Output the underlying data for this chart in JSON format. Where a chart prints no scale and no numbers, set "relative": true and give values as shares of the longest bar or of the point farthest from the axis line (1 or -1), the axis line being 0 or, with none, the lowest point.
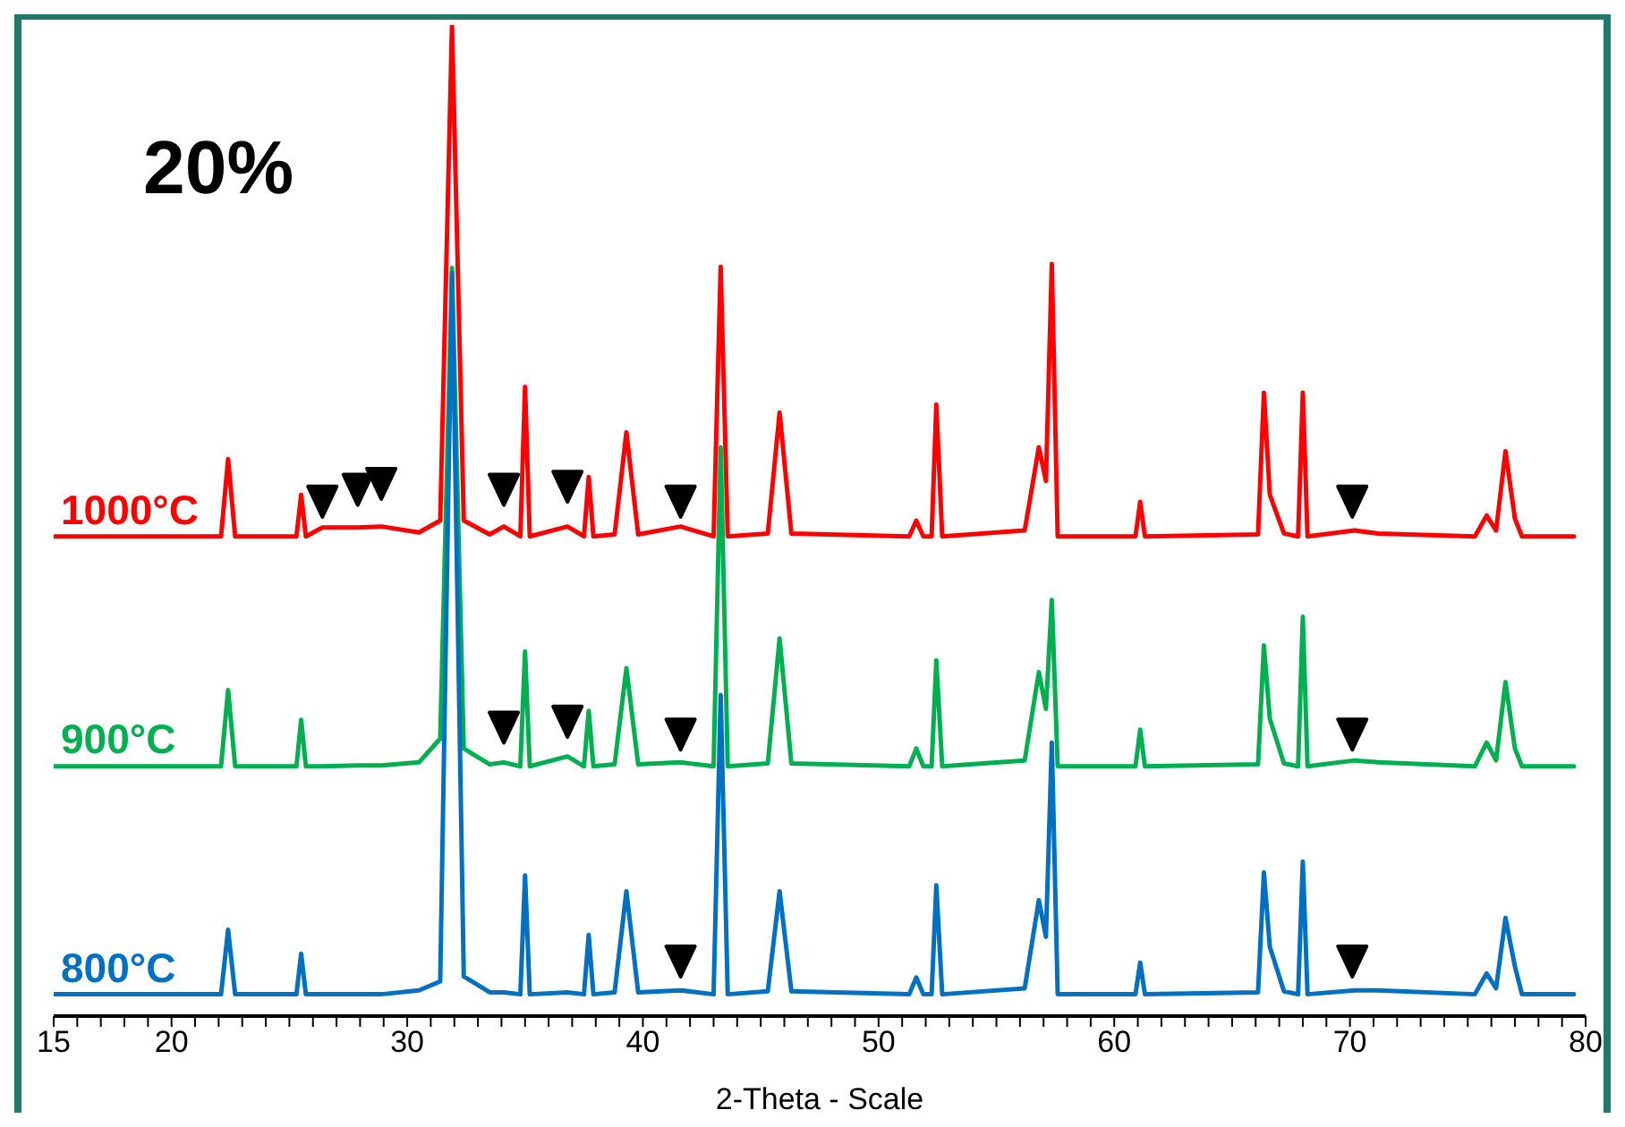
{
  "chart_data": {
    "type": "line",
    "title": "20%",
    "xlabel": "2-Theta - Scale",
    "relative": true,
    "marker": "none",
    "legend": false,
    "xlim": [
      15,
      80
    ],
    "xticks": [
      15,
      {
        "value": 16,
        "label": null
      },
      {
        "value": 17,
        "label": null
      },
      {
        "value": 18,
        "label": null
      },
      {
        "value": 19,
        "label": null
      },
      20,
      {
        "value": 21,
        "label": null
      },
      {
        "value": 22,
        "label": null
      },
      {
        "value": 23,
        "label": null
      },
      {
        "value": 24,
        "label": null
      },
      {
        "value": 25,
        "label": null
      },
      {
        "value": 26,
        "label": null
      },
      {
        "value": 27,
        "label": null
      },
      {
        "value": 28,
        "label": null
      },
      {
        "value": 29,
        "label": null
      },
      30,
      {
        "value": 31,
        "label": null
      },
      {
        "value": 32,
        "label": null
      },
      {
        "value": 33,
        "label": null
      },
      {
        "value": 34,
        "label": null
      },
      {
        "value": 35,
        "label": null
      },
      {
        "value": 36,
        "label": null
      },
      {
        "value": 37,
        "label": null
      },
      {
        "value": 38,
        "label": null
      },
      {
        "value": 39,
        "label": null
      },
      40,
      {
        "value": 41,
        "label": null
      },
      {
        "value": 42,
        "label": null
      },
      {
        "value": 43,
        "label": null
      },
      {
        "value": 44,
        "label": null
      },
      {
        "value": 45,
        "label": null
      },
      {
        "value": 46,
        "label": null
      },
      {
        "value": 47,
        "label": null
      },
      {
        "value": 48,
        "label": null
      },
      {
        "value": 49,
        "label": null
      },
      50,
      {
        "value": 51,
        "label": null
      },
      {
        "value": 52,
        "label": null
      },
      {
        "value": 53,
        "label": null
      },
      {
        "value": 54,
        "label": null
      },
      {
        "value": 55,
        "label": null
      },
      {
        "value": 56,
        "label": null
      },
      {
        "value": 57,
        "label": null
      },
      {
        "value": 58,
        "label": null
      },
      {
        "value": 59,
        "label": null
      },
      60,
      {
        "value": 61,
        "label": null
      },
      {
        "value": 62,
        "label": null
      },
      {
        "value": 63,
        "label": null
      },
      {
        "value": 64,
        "label": null
      },
      {
        "value": 65,
        "label": null
      },
      {
        "value": 66,
        "label": null
      },
      {
        "value": 67,
        "label": null
      },
      {
        "value": 68,
        "label": null
      },
      {
        "value": 69,
        "label": null
      },
      70,
      {
        "value": 71,
        "label": null
      },
      {
        "value": 72,
        "label": null
      },
      {
        "value": 73,
        "label": null
      },
      {
        "value": 74,
        "label": null
      },
      {
        "value": 75,
        "label": null
      },
      {
        "value": 76,
        "label": null
      },
      {
        "value": 77,
        "label": null
      },
      {
        "value": 78,
        "label": null
      },
      {
        "value": 79,
        "label": null
      },
      80
    ],
    "x": [
      15,
      22.1,
      22.4,
      22.7,
      25.3,
      25.5,
      25.7,
      26.4,
      27.9,
      28.9,
      30.5,
      31.4,
      31.9,
      32.4,
      33.5,
      34.1,
      34.8,
      35.0,
      35.2,
      36.8,
      37.5,
      37.7,
      37.9,
      38.8,
      39.3,
      39.8,
      41.6,
      43.0,
      43.3,
      43.6,
      45.3,
      45.8,
      46.3,
      51.3,
      51.6,
      51.9,
      52.25,
      52.45,
      52.7,
      56.2,
      56.8,
      57.1,
      57.35,
      57.6,
      60.9,
      61.1,
      61.3,
      66.1,
      66.35,
      66.6,
      67.2,
      67.8,
      68.0,
      68.2,
      70.2,
      71.2,
      75.3,
      75.8,
      76.2,
      76.6,
      77.0,
      77.3,
      79.5
    ],
    "series": [
      {
        "name": "1000°C",
        "color": "#ff0000",
        "values": [
          0.484,
          0.484,
          0.562,
          0.484,
          0.484,
          0.526,
          0.484,
          0.493,
          0.493,
          0.494,
          0.488,
          0.5,
          1.0,
          0.5,
          0.486,
          0.494,
          0.484,
          0.635,
          0.484,
          0.494,
          0.484,
          0.544,
          0.484,
          0.486,
          0.589,
          0.486,
          0.494,
          0.484,
          0.756,
          0.484,
          0.487,
          0.609,
          0.487,
          0.484,
          0.5,
          0.484,
          0.484,
          0.617,
          0.484,
          0.49,
          0.574,
          0.54,
          0.759,
          0.484,
          0.484,
          0.519,
          0.484,
          0.486,
          0.629,
          0.526,
          0.487,
          0.484,
          0.629,
          0.484,
          0.49,
          0.487,
          0.484,
          0.505,
          0.49,
          0.57,
          0.502,
          0.484,
          0.484
        ]
      },
      {
        "name": "900°C",
        "color": "#00b050",
        "values": [
          0.252,
          0.252,
          0.329,
          0.252,
          0.252,
          0.299,
          0.252,
          0.252,
          0.253,
          0.253,
          0.256,
          0.28,
          0.755,
          0.27,
          0.254,
          0.256,
          0.252,
          0.368,
          0.252,
          0.262,
          0.252,
          0.308,
          0.252,
          0.254,
          0.351,
          0.254,
          0.256,
          0.252,
          0.574,
          0.252,
          0.255,
          0.381,
          0.255,
          0.252,
          0.27,
          0.252,
          0.252,
          0.359,
          0.252,
          0.258,
          0.347,
          0.31,
          0.42,
          0.252,
          0.252,
          0.289,
          0.252,
          0.254,
          0.374,
          0.3,
          0.255,
          0.252,
          0.403,
          0.252,
          0.258,
          0.256,
          0.252,
          0.276,
          0.258,
          0.337,
          0.27,
          0.252,
          0.252
        ]
      },
      {
        "name": "800°C",
        "color": "#0070c0",
        "values": [
          0.022,
          0.022,
          0.087,
          0.022,
          0.022,
          0.063,
          0.022,
          0.022,
          0.022,
          0.022,
          0.026,
          0.035,
          0.75,
          0.04,
          0.024,
          0.024,
          0.022,
          0.142,
          0.022,
          0.024,
          0.022,
          0.082,
          0.022,
          0.024,
          0.126,
          0.024,
          0.026,
          0.022,
          0.324,
          0.022,
          0.025,
          0.126,
          0.025,
          0.022,
          0.039,
          0.022,
          0.022,
          0.132,
          0.022,
          0.028,
          0.117,
          0.08,
          0.276,
          0.022,
          0.022,
          0.054,
          0.022,
          0.024,
          0.145,
          0.07,
          0.025,
          0.022,
          0.156,
          0.022,
          0.026,
          0.026,
          0.022,
          0.043,
          0.028,
          0.099,
          0.05,
          0.022,
          0.022
        ]
      },
      {
        "type": "scatter",
        "marker": "triangle",
        "color": "#000000",
        "x": [
          26.4,
          27.9,
          28.9,
          34.1,
          36.8,
          41.6,
          70.1,
          34.1,
          36.8,
          41.6,
          70.1,
          41.6,
          70.1
        ],
        "values": [
          0.52,
          0.532,
          0.538,
          0.532,
          0.535,
          0.52,
          0.52,
          0.292,
          0.298,
          0.285,
          0.285,
          0.056,
          0.056
        ]
      }
    ]
  }
}
